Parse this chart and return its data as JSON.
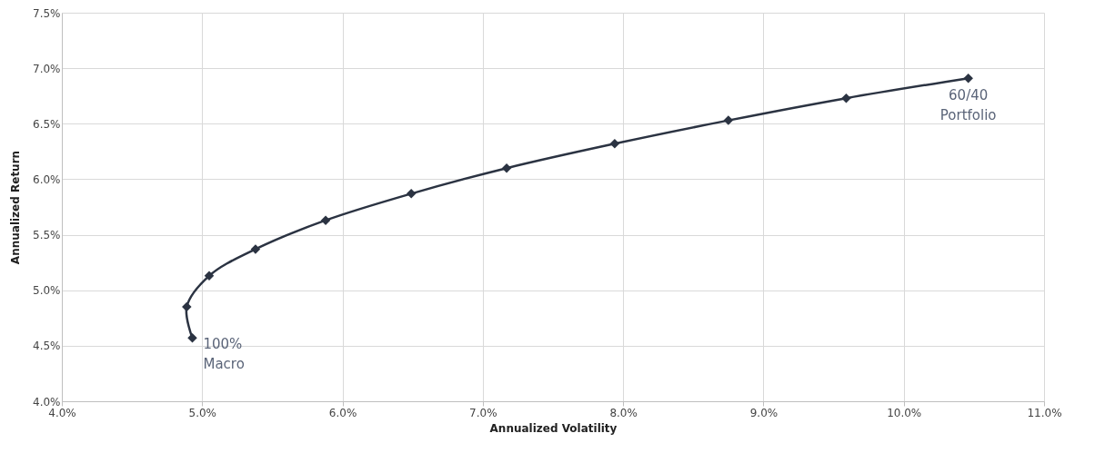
{
  "chart_data": {
    "type": "line",
    "xlabel": "Annualized Volatility",
    "ylabel": "Annualized Return",
    "x": [
      4.93,
      4.89,
      5.05,
      5.38,
      5.88,
      6.49,
      7.17,
      7.94,
      8.75,
      9.59,
      10.46
    ],
    "series": [
      {
        "color": "#2b3342",
        "values": [
          4.57,
          4.85,
          5.13,
          5.37,
          5.63,
          5.87,
          6.1,
          6.32,
          6.53,
          6.73,
          6.91
        ]
      }
    ],
    "xlim": [
      4,
      11
    ],
    "ylim": [
      4,
      7.5
    ],
    "xticks": [
      {
        "value": 4,
        "label": "4.0%"
      },
      {
        "value": 5,
        "label": "5.0%"
      },
      {
        "value": 6,
        "label": "6.0%"
      },
      {
        "value": 7,
        "label": "7.0%"
      },
      {
        "value": 8,
        "label": "8.0%"
      },
      {
        "value": 9,
        "label": "9.0%"
      },
      {
        "value": 10,
        "label": "10.0%"
      },
      {
        "value": 11,
        "label": "11.0%"
      }
    ],
    "yticks": [
      {
        "value": 4,
        "label": "4.0%"
      },
      {
        "value": 4.5,
        "label": "4.5%"
      },
      {
        "value": 5,
        "label": "5.0%"
      },
      {
        "value": 5.5,
        "label": "5.5%"
      },
      {
        "value": 6,
        "label": "6.0%"
      },
      {
        "value": 6.5,
        "label": "6.5%"
      },
      {
        "value": 7,
        "label": "7.0%"
      },
      {
        "value": 7.5,
        "label": "7.5%"
      }
    ],
    "annotations": [
      {
        "text": "100%\nMacro",
        "x": 4.93,
        "y": 4.57
      },
      {
        "text": "60/40\nPortfolio",
        "x": 10.46,
        "y": 6.91
      }
    ],
    "grid": true,
    "marker": "diamond",
    "line_style": "solid"
  }
}
